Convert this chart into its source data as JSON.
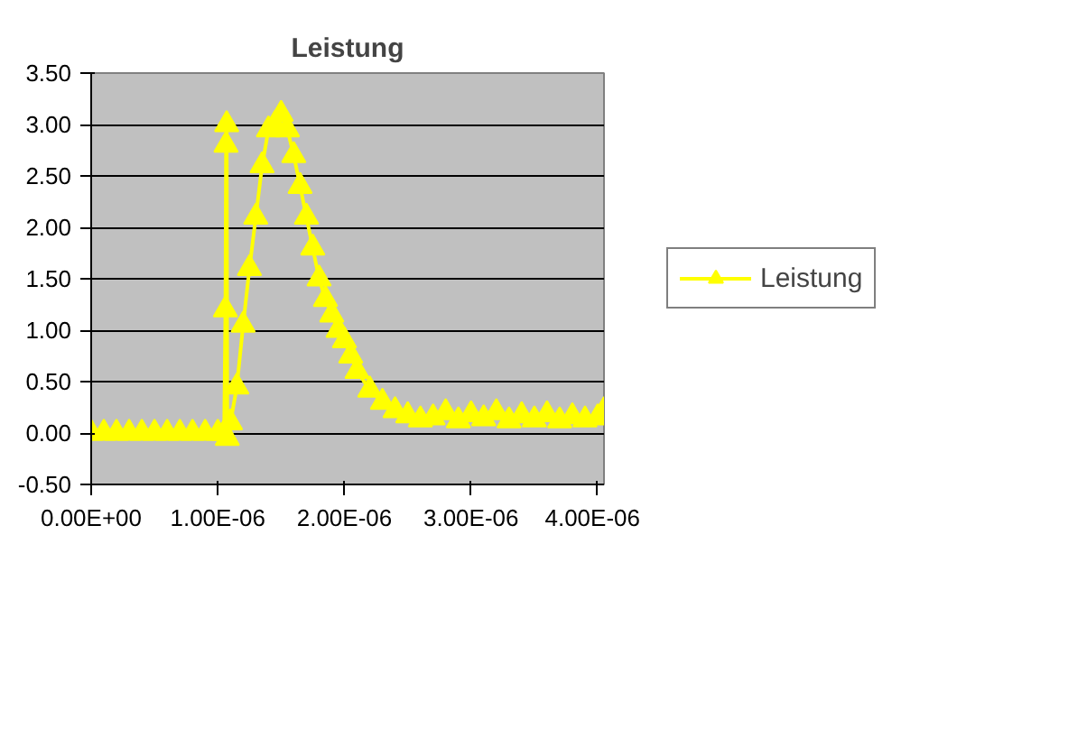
{
  "chart_data": {
    "type": "line",
    "title": "Leistung",
    "x": [
      0,
      1e-07,
      2e-07,
      3e-07,
      4e-07,
      5e-07,
      6e-07,
      7e-07,
      8e-07,
      9e-07,
      1e-06,
      1.05e-06,
      1.06e-06,
      1.065e-06,
      1.07e-06,
      1.075e-06,
      1.1e-06,
      1.15e-06,
      1.2e-06,
      1.25e-06,
      1.3e-06,
      1.35e-06,
      1.4e-06,
      1.45e-06,
      1.5e-06,
      1.55e-06,
      1.6e-06,
      1.65e-06,
      1.7e-06,
      1.75e-06,
      1.8e-06,
      1.85e-06,
      1.9e-06,
      1.95e-06,
      2e-06,
      2.05e-06,
      2.1e-06,
      2.2e-06,
      2.3e-06,
      2.4e-06,
      2.5e-06,
      2.6e-06,
      2.7e-06,
      2.8e-06,
      2.9e-06,
      3e-06,
      3.1e-06,
      3.2e-06,
      3.3e-06,
      3.4e-06,
      3.5e-06,
      3.6e-06,
      3.7e-06,
      3.8e-06,
      3.9e-06,
      4e-06,
      4.05e-06
    ],
    "series": [
      {
        "name": "Leistung",
        "color": "#ffff00",
        "values": [
          0,
          0,
          0,
          0,
          0,
          0,
          0,
          0,
          0,
          0,
          0,
          0,
          1.2,
          2.8,
          3.0,
          -0.05,
          0.1,
          0.45,
          1.05,
          1.6,
          2.1,
          2.6,
          2.95,
          3.0,
          3.1,
          2.95,
          2.7,
          2.4,
          2.1,
          1.8,
          1.5,
          1.3,
          1.15,
          1.0,
          0.9,
          0.75,
          0.6,
          0.42,
          0.3,
          0.22,
          0.17,
          0.13,
          0.15,
          0.2,
          0.12,
          0.18,
          0.14,
          0.2,
          0.12,
          0.17,
          0.13,
          0.18,
          0.12,
          0.16,
          0.13,
          0.15,
          0.22
        ]
      }
    ],
    "xlim": [
      0,
      4.05e-06
    ],
    "ylim": [
      -0.5,
      3.5
    ],
    "xticks": [
      {
        "value": 0,
        "label": "0.00E+00"
      },
      {
        "value": 1e-06,
        "label": "1.00E-06"
      },
      {
        "value": 2e-06,
        "label": "2.00E-06"
      },
      {
        "value": 3e-06,
        "label": "3.00E-06"
      },
      {
        "value": 4e-06,
        "label": "4.00E-06"
      }
    ],
    "yticks": [
      {
        "value": -0.5,
        "label": "-0.50"
      },
      {
        "value": 0,
        "label": "0.00"
      },
      {
        "value": 0.5,
        "label": "0.50"
      },
      {
        "value": 1,
        "label": "1.00"
      },
      {
        "value": 1.5,
        "label": "1.50"
      },
      {
        "value": 2,
        "label": "2.00"
      },
      {
        "value": 2.5,
        "label": "2.50"
      },
      {
        "value": 3,
        "label": "3.00"
      },
      {
        "value": 3.5,
        "label": "3.50"
      }
    ],
    "grid": "y",
    "legend": "right",
    "marker": "triangle",
    "line_style": "solid"
  }
}
